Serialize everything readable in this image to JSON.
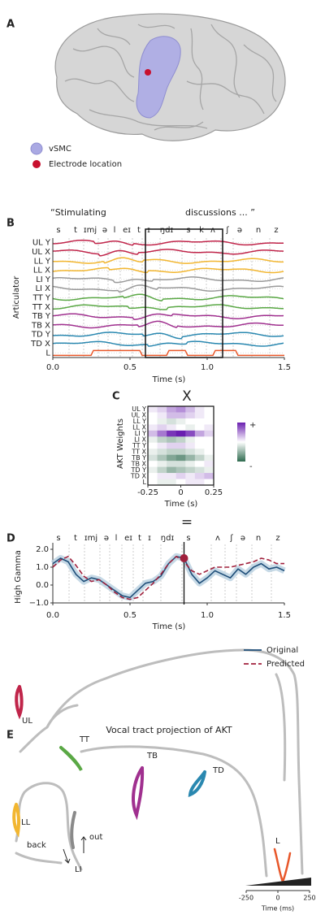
{
  "panel_labels": [
    "A",
    "B",
    "C",
    "D",
    "E"
  ],
  "brain_legend": [
    {
      "name": "vSMC",
      "color": "#aaa9e3"
    },
    {
      "name": "Electrode location",
      "color": "#c8102e"
    }
  ],
  "symbols": {
    "times": "X",
    "equals": "="
  },
  "chart_data": [
    {
      "type": "traces",
      "quote_start": "“Stimulating",
      "quote_end": "discussions ... ”",
      "phonemes": [
        "s",
        "t",
        "ɪmj",
        "ə",
        "l",
        "eɪ",
        "t",
        "ɪ",
        "ŋdɪ",
        "s",
        "k",
        "ʌ",
        "ʃ",
        "ə",
        "n",
        "z"
      ],
      "y_label": "Articulator",
      "rows": [
        {
          "name": "UL Y",
          "color": "#c0254a"
        },
        {
          "name": "UL X",
          "color": "#c0254a"
        },
        {
          "name": "LL Y",
          "color": "#f2b630"
        },
        {
          "name": "LL X",
          "color": "#f2b630"
        },
        {
          "name": "LI Y",
          "color": "#9a9a9a"
        },
        {
          "name": "LI X",
          "color": "#9a9a9a"
        },
        {
          "name": "TT Y",
          "color": "#5aa845"
        },
        {
          "name": "TT X",
          "color": "#5aa845"
        },
        {
          "name": "TB Y",
          "color": "#a0308f"
        },
        {
          "name": "TB X",
          "color": "#a0308f"
        },
        {
          "name": "TD Y",
          "color": "#2a88b0"
        },
        {
          "name": "TD X",
          "color": "#2a88b0"
        },
        {
          "name": "L",
          "color": "#e8572a"
        }
      ],
      "x_label": "Time (s)",
      "xlim": [
        0,
        1.5
      ],
      "xticks": [
        {
          "value": 0,
          "label": "0.0"
        },
        0.5,
        {
          "value": 1,
          "label": "1.0"
        },
        1.5
      ],
      "window": [
        0.6,
        1.1
      ]
    },
    {
      "type": "heatmap",
      "y_label": "AKT Weights",
      "rows": [
        "UL Y",
        "UL X",
        "LL Y",
        "LL X",
        "LI Y",
        "LI X",
        "TT Y",
        "TT X",
        "TB Y",
        "TB X",
        "TD Y",
        "TD X",
        "L"
      ],
      "x_label": "Time (s)",
      "xlim": [
        -0.25,
        0.25
      ],
      "xticks": [
        -0.25,
        0,
        0.25
      ],
      "colorbar_labels": [
        "+",
        "-"
      ],
      "colors": {
        "positive": "#6a1fb0",
        "zero": "#ffffff",
        "negative": "#2f6b4f"
      },
      "values": [
        [
          0.1,
          0.2,
          0.4,
          0.5,
          0.3,
          0.1,
          0
        ],
        [
          0,
          0.1,
          0.3,
          0.3,
          0.2,
          0.1,
          0
        ],
        [
          0,
          -0.1,
          -0.2,
          -0.1,
          0,
          0,
          0
        ],
        [
          0.1,
          0.2,
          0.1,
          0,
          -0.1,
          0,
          0.1
        ],
        [
          0.3,
          0.6,
          0.9,
          1,
          0.8,
          0.4,
          0.2
        ],
        [
          -0.1,
          -0.3,
          -0.4,
          -0.3,
          -0.1,
          0,
          0
        ],
        [
          0,
          0.1,
          0.2,
          0.2,
          0.1,
          0,
          0
        ],
        [
          -0.1,
          -0.2,
          -0.3,
          -0.3,
          -0.2,
          -0.1,
          0
        ],
        [
          -0.2,
          -0.4,
          -0.6,
          -0.7,
          -0.5,
          -0.3,
          -0.1
        ],
        [
          0,
          -0.1,
          -0.2,
          -0.2,
          -0.1,
          0,
          0.1
        ],
        [
          -0.1,
          -0.3,
          -0.5,
          -0.4,
          -0.3,
          -0.2,
          -0.1
        ],
        [
          0,
          0.1,
          0.1,
          0.2,
          0.1,
          0.2,
          0.3
        ],
        [
          0,
          -0.1,
          -0.1,
          0,
          0.1,
          0.1,
          0
        ]
      ]
    },
    {
      "type": "line",
      "phonemes": [
        "s",
        "t",
        "ɪmj",
        "ə",
        "l",
        "eɪ",
        "t",
        "ɪ",
        "ŋdɪ",
        "s",
        "ʌ",
        "ʃ",
        "ə",
        "n",
        "z"
      ],
      "y_label": "High Gamma",
      "x_label": "Time (s)",
      "xlim": [
        0,
        1.5
      ],
      "xticks": [
        {
          "value": 0,
          "label": "0.0"
        },
        0.5,
        {
          "value": 1,
          "label": "1.0"
        },
        1.5
      ],
      "ylim": [
        -1,
        2
      ],
      "yticks": [
        {
          "value": -1,
          "label": "−1.0"
        },
        {
          "value": 0,
          "label": "0.0"
        },
        {
          "value": 1,
          "label": "1.0"
        },
        {
          "value": 2,
          "label": "2.0"
        }
      ],
      "x": [
        0,
        0.05,
        0.1,
        0.15,
        0.2,
        0.25,
        0.3,
        0.35,
        0.4,
        0.45,
        0.5,
        0.55,
        0.6,
        0.65,
        0.7,
        0.75,
        0.8,
        0.85,
        0.9,
        0.95,
        1,
        1.05,
        1.1,
        1.15,
        1.2,
        1.25,
        1.3,
        1.35,
        1.4,
        1.45,
        1.5
      ],
      "series": [
        {
          "name": "Original",
          "color": "#1f4e79",
          "values": [
            1.2,
            1.5,
            1.3,
            0.6,
            0.2,
            0.4,
            0.3,
            0,
            -0.3,
            -0.6,
            -0.7,
            -0.3,
            0.1,
            0.2,
            0.5,
            1.2,
            1.6,
            1.5,
            0.6,
            0.1,
            0.4,
            0.8,
            0.6,
            0.4,
            0.9,
            0.6,
            1,
            1.2,
            0.9,
            1,
            0.8
          ]
        },
        {
          "name": "Predicted",
          "color": "#a0203c",
          "values": [
            1,
            1.4,
            1.6,
            1.1,
            0.5,
            0.2,
            0.3,
            0,
            -0.4,
            -0.7,
            -0.8,
            -0.7,
            -0.3,
            0.1,
            0.6,
            1.2,
            1.6,
            1.3,
            0.8,
            0.6,
            0.8,
            1,
            1,
            1,
            1.1,
            1.2,
            1.3,
            1.5,
            1.4,
            1.2,
            1.2
          ]
        }
      ],
      "highlight": {
        "x": 0.85,
        "y": 1.5,
        "color": "#a0203c"
      }
    }
  ],
  "vocal_tract": {
    "title": "Vocal tract projection of AKT",
    "labels": [
      {
        "text": "UL",
        "color": "#c0254a"
      },
      {
        "text": "TT",
        "color": "#5aa845"
      },
      {
        "text": "TB",
        "color": "#a0308f"
      },
      {
        "text": "TD",
        "color": "#2a88b0"
      },
      {
        "text": "LL",
        "color": "#f2b630"
      },
      {
        "text": "LI",
        "color": "#8a8a8a"
      },
      {
        "text": "L",
        "color": "#e8572a"
      }
    ],
    "arrows": [
      "back",
      "out"
    ],
    "scale_ticks": [
      -250,
      0,
      250
    ],
    "scale_label": "Time (ms)"
  }
}
